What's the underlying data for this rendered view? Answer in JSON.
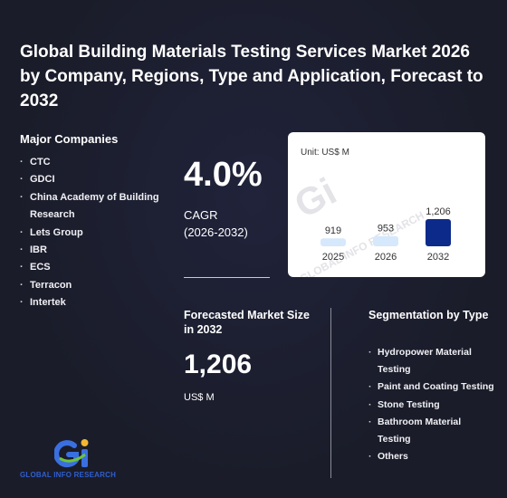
{
  "title": "Global Building Materials Testing Services Market 2026 by Company, Regions, Type and Application, Forecast to 2032",
  "companies": {
    "heading": "Major Companies",
    "items": [
      "CTC",
      "GDCI",
      "China Academy of Building Research",
      "Lets Group",
      "IBR",
      "ECS",
      "Terracon",
      "Intertek"
    ]
  },
  "cagr": {
    "value": "4.0%",
    "label": "CAGR",
    "period": "(2026-2032)"
  },
  "forecast": {
    "heading": "Forecasted Market Size in 2032",
    "value": "1,206",
    "unit": "US$ M"
  },
  "segmentation": {
    "heading": "Segmentation by Type",
    "items": [
      "Hydropower Material Testing",
      "Paint and Coating Testing",
      "Stone Testing",
      "Bathroom Material Testing",
      "Others"
    ]
  },
  "logo": {
    "mark": "Gi",
    "name": "GLOBAL INFO RESEARCH"
  },
  "chart_data": {
    "type": "bar",
    "unit_label": "Unit: US$ M",
    "categories": [
      "2025",
      "2026",
      "2032"
    ],
    "values": [
      919,
      953,
      1206
    ],
    "value_labels": [
      "919",
      "953",
      "1,206"
    ],
    "colors": [
      "#d6e8fb",
      "#d6e8fb",
      "#0c2a8a"
    ],
    "watermark": "GLOBAL INFO RESEARCH",
    "ylim": [
      0,
      1206
    ]
  }
}
